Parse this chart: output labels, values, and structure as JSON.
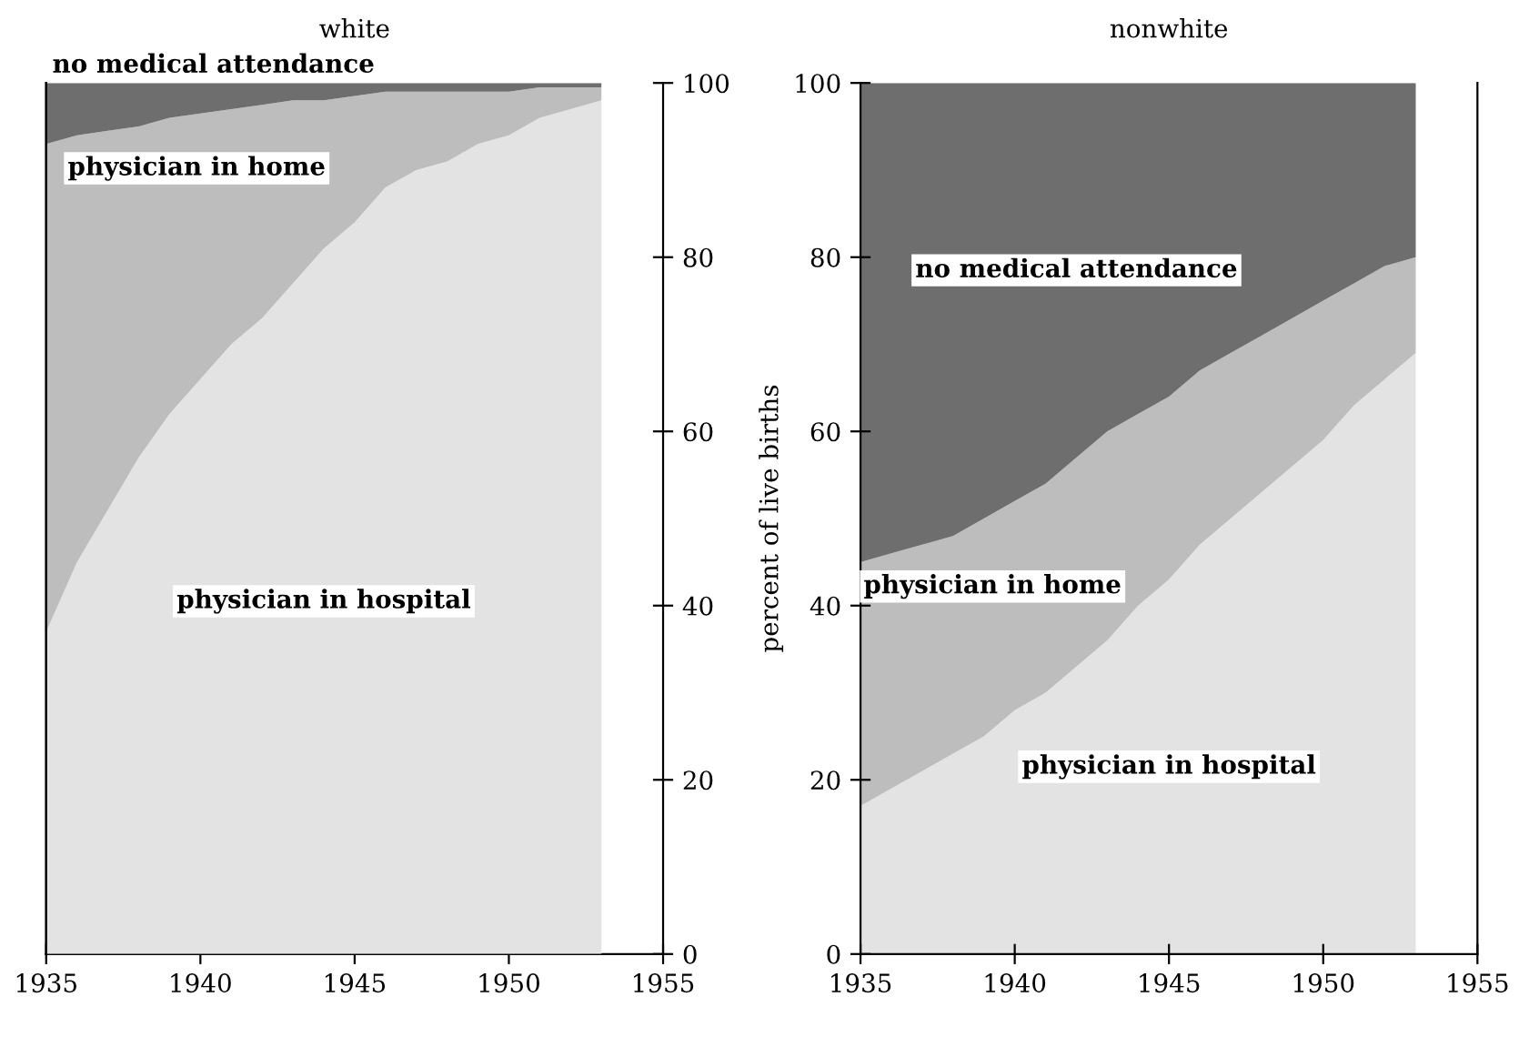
{
  "chart_data": [
    {
      "type": "area",
      "stacked": true,
      "title": "white",
      "x": [
        1935,
        1936,
        1937,
        1938,
        1939,
        1940,
        1941,
        1942,
        1943,
        1944,
        1945,
        1946,
        1947,
        1948,
        1949,
        1950,
        1951,
        1952,
        1953
      ],
      "series": [
        {
          "name": "physician in hospital",
          "color": "#e3e3e3",
          "axis": "y2",
          "values": [
            37,
            45,
            51,
            57,
            62,
            66,
            70,
            73,
            77,
            81,
            84,
            88,
            90,
            91,
            93,
            94,
            96,
            97,
            98
          ]
        },
        {
          "name": "physician in home",
          "color": "#bdbdbd",
          "axis": "y2",
          "values": [
            56,
            49,
            43.5,
            38,
            34,
            30.5,
            27,
            24.5,
            21,
            17,
            14.5,
            11,
            9,
            8,
            6,
            5,
            3.5,
            2.5,
            1.5
          ]
        },
        {
          "name": "no medical attendance",
          "color": "#6e6e6e",
          "axis": "y2",
          "values": [
            7,
            6,
            5.5,
            5,
            4,
            3.5,
            3,
            2.5,
            2,
            2,
            1.5,
            1,
            1,
            1,
            1,
            1,
            0.5,
            0.5,
            0.5
          ]
        }
      ],
      "xlim": [
        1935,
        1955
      ],
      "xticks": [
        1935,
        1940,
        1945,
        1950,
        1955
      ],
      "y2lim": [
        0,
        100
      ],
      "y2ticks": [
        0,
        20,
        40,
        60,
        80,
        100
      ],
      "grid": false,
      "legend": false
    },
    {
      "type": "area",
      "stacked": true,
      "title": "nonwhite",
      "ylabel": "percent of live births",
      "x": [
        1935,
        1936,
        1937,
        1938,
        1939,
        1940,
        1941,
        1942,
        1943,
        1944,
        1945,
        1946,
        1947,
        1948,
        1949,
        1950,
        1951,
        1952,
        1953
      ],
      "series": [
        {
          "name": "physician in hospital",
          "color": "#e3e3e3",
          "values": [
            17,
            19,
            21,
            23,
            25,
            28,
            30,
            33,
            36,
            40,
            43,
            47,
            50,
            53,
            56,
            59,
            63,
            66,
            69
          ]
        },
        {
          "name": "physician in home",
          "color": "#bdbdbd",
          "values": [
            28,
            27,
            26,
            25,
            25,
            24,
            24,
            24,
            24,
            22,
            21,
            20,
            19,
            18,
            17,
            16,
            14,
            13,
            11
          ]
        },
        {
          "name": "no medical attendance",
          "color": "#6e6e6e",
          "values": [
            55,
            54,
            53,
            52,
            50,
            48,
            46,
            43,
            40,
            38,
            36,
            33,
            31,
            29,
            27,
            25,
            23,
            21,
            20
          ]
        }
      ],
      "xlim": [
        1935,
        1955
      ],
      "xticks": [
        1935,
        1940,
        1945,
        1950,
        1955
      ],
      "ylim": [
        0,
        100
      ],
      "yticks": [
        0,
        20,
        40,
        60,
        80,
        100
      ],
      "grid": false,
      "legend": false
    }
  ]
}
